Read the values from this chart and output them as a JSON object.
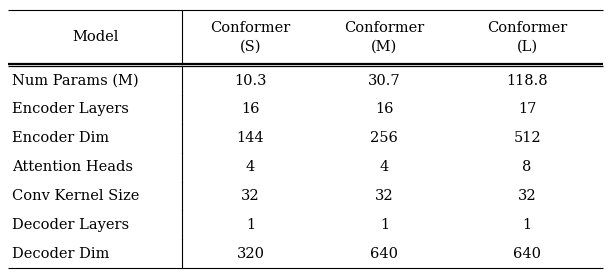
{
  "col_headers": [
    "Model",
    "Conformer\n(S)",
    "Conformer\n(M)",
    "Conformer\n(L)"
  ],
  "rows": [
    [
      "Num Params (M)",
      "10.3",
      "30.7",
      "118.8"
    ],
    [
      "Encoder Layers",
      "16",
      "16",
      "17"
    ],
    [
      "Encoder Dim",
      "144",
      "256",
      "512"
    ],
    [
      "Attention Heads",
      "4",
      "4",
      "8"
    ],
    [
      "Conv Kernel Size",
      "32",
      "32",
      "32"
    ],
    [
      "Decoder Layers",
      "1",
      "1",
      "1"
    ],
    [
      "Decoder Dim",
      "320",
      "640",
      "640"
    ]
  ],
  "bg_color": "#ffffff",
  "text_color": "#000000",
  "font_size": 10.5,
  "header_font_size": 10.5,
  "fig_width": 6.08,
  "fig_height": 2.72,
  "dpi": 100
}
